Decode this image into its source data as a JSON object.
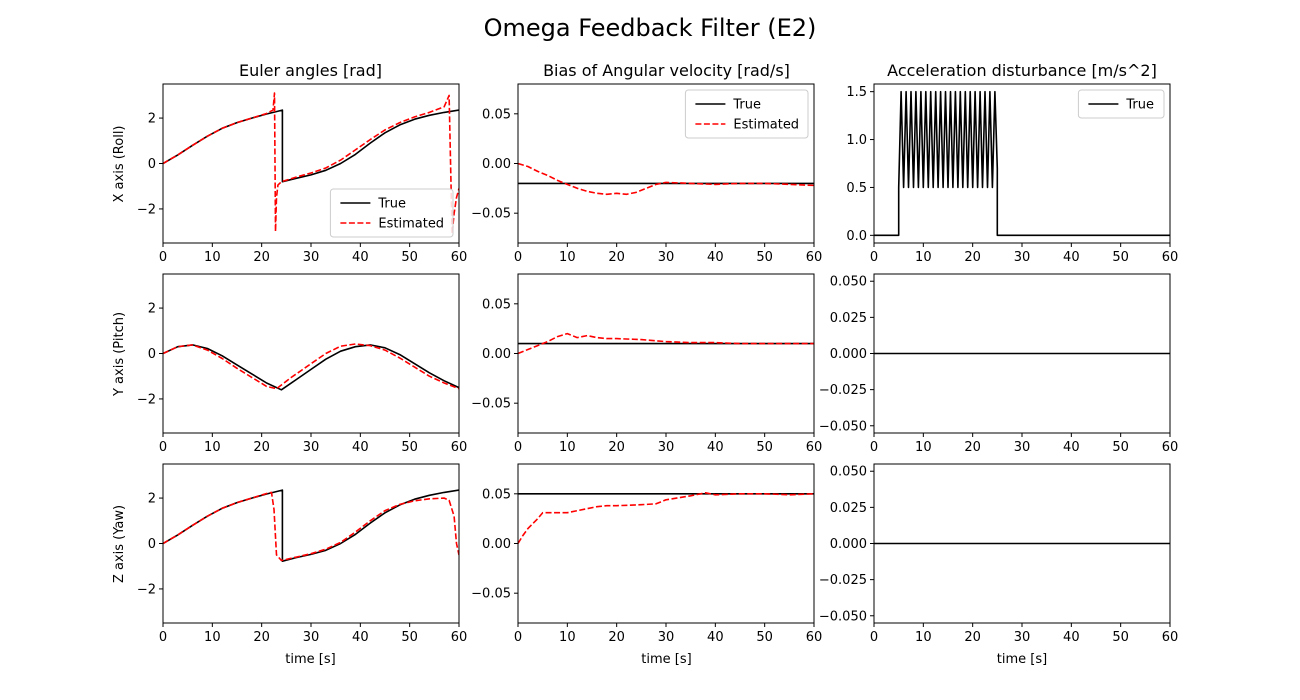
{
  "figure": {
    "title": "Omega Feedback Filter (E2)",
    "column_titles": [
      "Euler angles [rad]",
      "Bias of Angular velocity [rad/s]",
      "Acceleration disturbance [m/s^2]"
    ],
    "row_labels": [
      "X axis (Roll)",
      "Y axis (Pitch)",
      "Z axis (Yaw)"
    ],
    "xlabel": "time [s]",
    "colors": {
      "true": "#000000",
      "estimated": "#ff0000"
    }
  },
  "chart_data": [
    {
      "id": "euler-roll",
      "type": "line",
      "xlim": [
        0,
        60
      ],
      "ylim": [
        -3.5,
        3.5
      ],
      "xticks": [
        0,
        10,
        20,
        30,
        40,
        50,
        60
      ],
      "yticks": [
        -2,
        0,
        2
      ],
      "ytick_labels": [
        "−2",
        "0",
        "2"
      ],
      "legend": "lower-right",
      "series": [
        {
          "name": "True",
          "style": "solid",
          "x": [
            0,
            3,
            6,
            9,
            12,
            15,
            18,
            21,
            24.2,
            24.2,
            27,
            30,
            33,
            36,
            39,
            42,
            45,
            48,
            51,
            54,
            57,
            60
          ],
          "y": [
            0,
            0.38,
            0.8,
            1.2,
            1.55,
            1.8,
            2.0,
            2.18,
            2.35,
            -0.8,
            -0.65,
            -0.5,
            -0.3,
            0,
            0.4,
            0.9,
            1.35,
            1.7,
            1.95,
            2.12,
            2.25,
            2.35
          ]
        },
        {
          "name": "Estimated",
          "style": "dashed",
          "x": [
            0,
            3,
            6,
            9,
            12,
            15,
            18,
            21,
            22.3,
            22.6,
            22.8,
            23.0,
            23.3,
            24,
            27,
            30,
            33,
            36,
            39,
            42,
            45,
            48,
            51,
            54,
            57,
            58.0,
            58.6,
            59.0,
            59.5,
            60
          ],
          "y": [
            0,
            0.38,
            0.8,
            1.2,
            1.55,
            1.8,
            2.0,
            2.2,
            2.35,
            3.1,
            -3.0,
            -1.5,
            -0.95,
            -0.8,
            -0.6,
            -0.42,
            -0.2,
            0.15,
            0.6,
            1.05,
            1.48,
            1.8,
            2.05,
            2.25,
            2.5,
            3.0,
            -3.1,
            -2.2,
            -1.5,
            -1.1
          ]
        }
      ]
    },
    {
      "id": "bias-roll",
      "type": "line",
      "xlim": [
        0,
        60
      ],
      "ylim": [
        -0.08,
        0.08
      ],
      "xticks": [
        0,
        10,
        20,
        30,
        40,
        50,
        60
      ],
      "yticks": [
        -0.05,
        0,
        0.05
      ],
      "ytick_labels": [
        "−0.05",
        "0.00",
        "0.05"
      ],
      "legend": "upper-right",
      "series": [
        {
          "name": "True",
          "style": "solid",
          "x": [
            0,
            60
          ],
          "y": [
            -0.02,
            -0.02
          ]
        },
        {
          "name": "Estimated",
          "style": "dashed",
          "x": [
            0,
            2,
            4,
            6,
            8,
            10,
            12,
            14,
            16,
            18,
            20,
            22,
            24,
            26,
            28,
            30,
            35,
            40,
            45,
            50,
            55,
            60
          ],
          "y": [
            0,
            -0.003,
            -0.008,
            -0.012,
            -0.017,
            -0.021,
            -0.025,
            -0.028,
            -0.03,
            -0.031,
            -0.03,
            -0.031,
            -0.029,
            -0.025,
            -0.021,
            -0.019,
            -0.02,
            -0.021,
            -0.02,
            -0.02,
            -0.021,
            -0.022
          ]
        }
      ]
    },
    {
      "id": "accel-roll",
      "type": "line",
      "xlim": [
        0,
        60
      ],
      "ylim": [
        -0.08,
        1.58
      ],
      "xticks": [
        0,
        10,
        20,
        30,
        40,
        50,
        60
      ],
      "yticks": [
        0,
        0.5,
        1.0,
        1.5
      ],
      "ytick_labels": [
        "0.0",
        "0.5",
        "1.0",
        "1.5"
      ],
      "legend": "upper-right",
      "series": [
        {
          "name": "True",
          "style": "solid",
          "x": [
            0,
            5,
            5,
            5.5,
            6.0,
            6.5,
            7.0,
            7.5,
            8.0,
            8.5,
            9.0,
            9.5,
            10.0,
            10.5,
            11.0,
            11.5,
            12.0,
            12.5,
            13.0,
            13.5,
            14.0,
            14.5,
            15.0,
            15.5,
            16.0,
            16.5,
            17.0,
            17.5,
            18.0,
            18.5,
            19.0,
            19.5,
            20.0,
            20.5,
            21.0,
            21.5,
            22.0,
            22.5,
            23.0,
            23.5,
            24.0,
            24.5,
            25.0,
            25.0,
            60
          ],
          "y": [
            0,
            0,
            0.5,
            1.5,
            0.5,
            1.5,
            0.5,
            1.5,
            0.5,
            1.5,
            0.5,
            1.5,
            0.5,
            1.5,
            0.5,
            1.5,
            0.5,
            1.5,
            0.5,
            1.5,
            0.5,
            1.5,
            0.5,
            1.5,
            0.5,
            1.5,
            0.5,
            1.5,
            0.5,
            1.5,
            0.5,
            1.5,
            0.5,
            1.5,
            0.5,
            1.5,
            0.5,
            1.5,
            0.5,
            1.5,
            0.5,
            1.5,
            0.7,
            0,
            0
          ]
        }
      ]
    },
    {
      "id": "euler-pitch",
      "type": "line",
      "xlim": [
        0,
        60
      ],
      "ylim": [
        -3.5,
        3.5
      ],
      "xticks": [
        0,
        10,
        20,
        30,
        40,
        50,
        60
      ],
      "yticks": [
        -2,
        0,
        2
      ],
      "ytick_labels": [
        "−2",
        "0",
        "2"
      ],
      "series": [
        {
          "name": "True",
          "style": "solid",
          "x": [
            0,
            3,
            6,
            9,
            12,
            15,
            18,
            21,
            24,
            27,
            30,
            33,
            36,
            39,
            42,
            45,
            48,
            51,
            54,
            57,
            60
          ],
          "y": [
            0,
            0.3,
            0.38,
            0.22,
            -0.1,
            -0.5,
            -0.9,
            -1.3,
            -1.6,
            -1.15,
            -0.7,
            -0.25,
            0.1,
            0.3,
            0.38,
            0.25,
            -0.05,
            -0.45,
            -0.85,
            -1.2,
            -1.5
          ]
        },
        {
          "name": "Estimated",
          "style": "dashed",
          "x": [
            0,
            3,
            6,
            9,
            12,
            15,
            18,
            21,
            23,
            26,
            30,
            33,
            36,
            39,
            42,
            45,
            48,
            51,
            54,
            57,
            60
          ],
          "y": [
            0,
            0.3,
            0.38,
            0.15,
            -0.22,
            -0.65,
            -1.05,
            -1.45,
            -1.55,
            -1.05,
            -0.45,
            0,
            0.32,
            0.42,
            0.35,
            0.15,
            -0.2,
            -0.6,
            -1.0,
            -1.3,
            -1.55
          ]
        }
      ]
    },
    {
      "id": "bias-pitch",
      "type": "line",
      "xlim": [
        0,
        60
      ],
      "ylim": [
        -0.08,
        0.08
      ],
      "xticks": [
        0,
        10,
        20,
        30,
        40,
        50,
        60
      ],
      "yticks": [
        -0.05,
        0,
        0.05
      ],
      "ytick_labels": [
        "−0.05",
        "0.00",
        "0.05"
      ],
      "series": [
        {
          "name": "True",
          "style": "solid",
          "x": [
            0,
            60
          ],
          "y": [
            0.01,
            0.01
          ]
        },
        {
          "name": "Estimated",
          "style": "dashed",
          "x": [
            0,
            2,
            4,
            6,
            8,
            10,
            12,
            14,
            16,
            18,
            20,
            25,
            30,
            35,
            40,
            45,
            50,
            55,
            60
          ],
          "y": [
            0,
            0.004,
            0.008,
            0.012,
            0.017,
            0.02,
            0.016,
            0.018,
            0.016,
            0.015,
            0.015,
            0.014,
            0.012,
            0.011,
            0.011,
            0.01,
            0.01,
            0.01,
            0.01
          ]
        }
      ]
    },
    {
      "id": "accel-pitch",
      "type": "line",
      "xlim": [
        0,
        60
      ],
      "ylim": [
        -0.055,
        0.055
      ],
      "xticks": [
        0,
        10,
        20,
        30,
        40,
        50,
        60
      ],
      "yticks": [
        -0.05,
        -0.025,
        0,
        0.025,
        0.05
      ],
      "ytick_labels": [
        "−0.050",
        "−0.025",
        "0.000",
        "0.025",
        "0.050"
      ],
      "series": [
        {
          "name": "True",
          "style": "solid",
          "x": [
            0,
            60
          ],
          "y": [
            0,
            0
          ]
        }
      ]
    },
    {
      "id": "euler-yaw",
      "type": "line",
      "xlim": [
        0,
        60
      ],
      "ylim": [
        -3.5,
        3.5
      ],
      "xticks": [
        0,
        10,
        20,
        30,
        40,
        50,
        60
      ],
      "yticks": [
        -2,
        0,
        2
      ],
      "ytick_labels": [
        "−2",
        "0",
        "2"
      ],
      "series": [
        {
          "name": "True",
          "style": "solid",
          "x": [
            0,
            3,
            6,
            9,
            12,
            15,
            18,
            21,
            24.2,
            24.2,
            27,
            30,
            33,
            36,
            39,
            42,
            45,
            48,
            51,
            54,
            57,
            60
          ],
          "y": [
            0,
            0.38,
            0.8,
            1.2,
            1.55,
            1.8,
            2.0,
            2.18,
            2.35,
            -0.78,
            -0.62,
            -0.48,
            -0.3,
            0,
            0.4,
            0.9,
            1.35,
            1.7,
            1.95,
            2.12,
            2.25,
            2.35
          ]
        },
        {
          "name": "Estimated",
          "style": "dashed",
          "x": [
            0,
            3,
            6,
            9,
            12,
            15,
            18,
            21,
            22,
            22.5,
            23,
            24,
            27,
            30,
            33,
            36,
            39,
            42,
            45,
            48,
            51,
            54,
            57,
            58,
            59,
            59.5,
            60
          ],
          "y": [
            0,
            0.38,
            0.8,
            1.2,
            1.55,
            1.8,
            2.0,
            2.2,
            2.25,
            1.5,
            -0.5,
            -0.75,
            -0.6,
            -0.45,
            -0.25,
            0.05,
            0.5,
            1.0,
            1.45,
            1.72,
            1.88,
            1.97,
            2.0,
            1.9,
            1.2,
            0,
            -0.5
          ]
        }
      ]
    },
    {
      "id": "bias-yaw",
      "type": "line",
      "xlim": [
        0,
        60
      ],
      "ylim": [
        -0.08,
        0.08
      ],
      "xticks": [
        0,
        10,
        20,
        30,
        40,
        50,
        60
      ],
      "yticks": [
        -0.05,
        0,
        0.05
      ],
      "ytick_labels": [
        "−0.05",
        "0.00",
        "0.05"
      ],
      "series": [
        {
          "name": "True",
          "style": "solid",
          "x": [
            0,
            60
          ],
          "y": [
            0.05,
            0.05
          ]
        },
        {
          "name": "Estimated",
          "style": "dashed",
          "x": [
            0,
            1,
            2,
            3,
            4,
            5,
            6,
            8,
            10,
            12,
            14,
            16,
            18,
            20,
            25,
            28,
            30,
            35,
            38,
            40,
            45,
            50,
            55,
            60
          ],
          "y": [
            0,
            0.008,
            0.015,
            0.02,
            0.025,
            0.031,
            0.031,
            0.031,
            0.031,
            0.033,
            0.035,
            0.037,
            0.038,
            0.038,
            0.039,
            0.04,
            0.044,
            0.048,
            0.051,
            0.049,
            0.05,
            0.05,
            0.049,
            0.05
          ]
        }
      ]
    },
    {
      "id": "accel-yaw",
      "type": "line",
      "xlim": [
        0,
        60
      ],
      "ylim": [
        -0.055,
        0.055
      ],
      "xticks": [
        0,
        10,
        20,
        30,
        40,
        50,
        60
      ],
      "yticks": [
        -0.05,
        -0.025,
        0,
        0.025,
        0.05
      ],
      "ytick_labels": [
        "−0.050",
        "−0.025",
        "0.000",
        "0.025",
        "0.050"
      ],
      "series": [
        {
          "name": "True",
          "style": "solid",
          "x": [
            0,
            60
          ],
          "y": [
            0,
            0
          ]
        }
      ]
    }
  ]
}
